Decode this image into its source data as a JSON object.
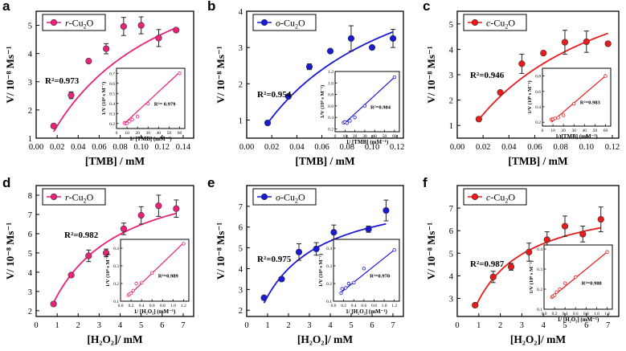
{
  "figure": {
    "description_panels": [
      "a",
      "b",
      "c",
      "d",
      "e",
      "f"
    ]
  },
  "chart_data": [
    {
      "type": "scatter",
      "panel_letter": "a",
      "color": "#e8227a",
      "legend": {
        "prefix": "r",
        "label": "-Cu",
        "sub": "2",
        "suffix": "O"
      },
      "xlabel": "[TMB] / mM",
      "ylabel": "V/ 10⁻⁸ Ms⁻¹",
      "xlim": [
        0.0,
        0.15
      ],
      "ylim": [
        1,
        5.5
      ],
      "xticks": [
        "0.00",
        "0.02",
        "0.04",
        "0.06",
        "0.08",
        "0.10",
        "0.12",
        "0.14"
      ],
      "xtick_values": [
        0.0,
        0.02,
        0.04,
        0.06,
        0.08,
        0.1,
        0.12,
        0.14
      ],
      "yticks": [
        "1",
        "2",
        "3",
        "4",
        "5"
      ],
      "ytick_values": [
        1,
        2,
        3,
        4,
        5
      ],
      "points": [
        {
          "x": 0.0167,
          "y": 1.43,
          "err": 0.05
        },
        {
          "x": 0.0333,
          "y": 2.52,
          "err": 0.12
        },
        {
          "x": 0.05,
          "y": 3.73,
          "err": 0.04
        },
        {
          "x": 0.0667,
          "y": 4.17,
          "err": 0.18
        },
        {
          "x": 0.0833,
          "y": 4.96,
          "err": 0.32
        },
        {
          "x": 0.1,
          "y": 5.0,
          "err": 0.3
        },
        {
          "x": 0.1167,
          "y": 4.55,
          "err": 0.3
        },
        {
          "x": 0.1333,
          "y": 4.83,
          "err": 0.05
        }
      ],
      "fit": {
        "vmax": 8.6,
        "km": 0.1
      },
      "fit_range": [
        0.0167,
        0.1333
      ],
      "r2_label": "R²=0.973",
      "inset": {
        "xlabel": "1/ [TMB] (mM⁻¹)",
        "ylabel": "1/V (10⁸ s M⁻¹)",
        "xlim": [
          0,
          65
        ],
        "ylim": [
          0.15,
          0.75
        ],
        "xticks": [
          "0",
          "10",
          "20",
          "30",
          "40",
          "50",
          "60"
        ],
        "xtick_values": [
          0,
          10,
          20,
          30,
          40,
          50,
          60
        ],
        "yticks": [
          "0.2",
          "0.3",
          "0.4",
          "0.5",
          "0.6",
          "0.7"
        ],
        "ytick_values": [
          0.2,
          0.3,
          0.4,
          0.5,
          0.6,
          0.7
        ],
        "points": [
          {
            "x": 7.5,
            "y": 0.207
          },
          {
            "x": 8.5,
            "y": 0.2
          },
          {
            "x": 10,
            "y": 0.201
          },
          {
            "x": 12,
            "y": 0.22
          },
          {
            "x": 15,
            "y": 0.24
          },
          {
            "x": 20,
            "y": 0.268
          },
          {
            "x": 30,
            "y": 0.397
          },
          {
            "x": 60,
            "y": 0.7
          }
        ],
        "line": [
          [
            7.5,
            0.2
          ],
          [
            60,
            0.71
          ]
        ],
        "r2_label": "R²= 0.979"
      }
    },
    {
      "type": "scatter",
      "panel_letter": "b",
      "color": "#1a1ad6",
      "legend": {
        "prefix": "o",
        "label": "-Cu",
        "sub": "2",
        "suffix": "O"
      },
      "xlabel": "[TMB] / mM",
      "ylabel": "V/ 10⁻⁸ Ms⁻¹",
      "xlim": [
        0.0,
        0.125
      ],
      "ylim": [
        0.5,
        4.0
      ],
      "xticks": [
        "0.00",
        "0.02",
        "0.04",
        "0.06",
        "0.08",
        "0.10",
        "0.12"
      ],
      "xtick_values": [
        0.0,
        0.02,
        0.04,
        0.06,
        0.08,
        0.1,
        0.12
      ],
      "yticks": [
        "1",
        "2",
        "3",
        "4"
      ],
      "ytick_values": [
        1,
        2,
        3,
        4
      ],
      "points": [
        {
          "x": 0.0167,
          "y": 0.92,
          "err": 0.03
        },
        {
          "x": 0.0333,
          "y": 1.65,
          "err": 0.04
        },
        {
          "x": 0.05,
          "y": 2.47,
          "err": 0.08
        },
        {
          "x": 0.0667,
          "y": 2.9,
          "err": 0.03
        },
        {
          "x": 0.0833,
          "y": 3.25,
          "err": 0.35
        },
        {
          "x": 0.1,
          "y": 3.0,
          "err": 0.04
        },
        {
          "x": 0.1167,
          "y": 3.25,
          "err": 0.25
        }
      ],
      "fit": {
        "vmax": 6.37,
        "km": 0.1
      },
      "fit_range": [
        0.0167,
        0.1167
      ],
      "r2_label": "R²=0.954",
      "inset": {
        "xlabel": "1/ [TMB] (mM⁻¹)",
        "ylabel": "1/V (10⁸ s M⁻¹)",
        "xlim": [
          0,
          65
        ],
        "ylim": [
          0.15,
          1.2
        ],
        "xticks": [
          "0",
          "10",
          "20",
          "30",
          "40",
          "50",
          "60"
        ],
        "xtick_values": [
          0,
          10,
          20,
          30,
          40,
          50,
          60
        ],
        "yticks": [
          "0.2",
          "0.4",
          "0.6",
          "0.8",
          "1.0",
          "1.2"
        ],
        "ytick_values": [
          0.2,
          0.4,
          0.6,
          0.8,
          1.0,
          1.2
        ],
        "points": [
          {
            "x": 8.5,
            "y": 0.31
          },
          {
            "x": 10,
            "y": 0.32
          },
          {
            "x": 12,
            "y": 0.3
          },
          {
            "x": 15,
            "y": 0.34
          },
          {
            "x": 20,
            "y": 0.4
          },
          {
            "x": 30,
            "y": 0.6
          },
          {
            "x": 60,
            "y": 1.1
          }
        ],
        "line": [
          [
            8.5,
            0.28
          ],
          [
            60,
            1.1
          ]
        ],
        "r2_label": "R²=0.984"
      }
    },
    {
      "type": "scatter",
      "panel_letter": "c",
      "color": "#e81c1c",
      "legend": {
        "prefix": "c",
        "label": "-Cu",
        "sub": "2",
        "suffix": "O"
      },
      "xlabel": "[TMB] / mM",
      "ylabel": "V/ 10⁻⁸ Ms⁻¹",
      "xlim": [
        0.0,
        0.125
      ],
      "ylim": [
        0.5,
        5.5
      ],
      "xticks": [
        "0.00",
        "0.02",
        "0.04",
        "0.06",
        "0.08",
        "0.10",
        "0.12"
      ],
      "xtick_values": [
        0.0,
        0.02,
        0.04,
        0.06,
        0.08,
        0.1,
        0.12
      ],
      "yticks": [
        "1",
        "2",
        "3",
        "4",
        "5"
      ],
      "ytick_values": [
        1,
        2,
        3,
        4,
        5
      ],
      "points": [
        {
          "x": 0.0167,
          "y": 1.25,
          "err": 0.04
        },
        {
          "x": 0.0333,
          "y": 2.3,
          "err": 0.04
        },
        {
          "x": 0.05,
          "y": 3.43,
          "err": 0.38
        },
        {
          "x": 0.0667,
          "y": 3.85,
          "err": 0.05
        },
        {
          "x": 0.0833,
          "y": 4.28,
          "err": 0.47
        },
        {
          "x": 0.1,
          "y": 4.3,
          "err": 0.42
        },
        {
          "x": 0.1167,
          "y": 4.22,
          "err": 0.05
        }
      ],
      "fit": {
        "vmax": 8.6,
        "km": 0.1
      },
      "fit_range": [
        0.0167,
        0.1167
      ],
      "r2_label": "R²=0.946",
      "inset": {
        "xlabel": "1/ [TMB] (mM⁻¹)",
        "ylabel": "1/V (10⁸ s M⁻¹)",
        "xlim": [
          0,
          65
        ],
        "ylim": [
          0.15,
          0.9
        ],
        "xticks": [
          "0",
          "10",
          "20",
          "30",
          "40",
          "50",
          "60"
        ],
        "xtick_values": [
          0,
          10,
          20,
          30,
          40,
          50,
          60
        ],
        "yticks": [
          "0.2",
          "0.4",
          "0.6",
          "0.8"
        ],
        "ytick_values": [
          0.2,
          0.4,
          0.6,
          0.8
        ],
        "points": [
          {
            "x": 8.5,
            "y": 0.235
          },
          {
            "x": 10,
            "y": 0.24
          },
          {
            "x": 12,
            "y": 0.25
          },
          {
            "x": 15,
            "y": 0.26
          },
          {
            "x": 20,
            "y": 0.29
          },
          {
            "x": 30,
            "y": 0.44
          },
          {
            "x": 60,
            "y": 0.8
          }
        ],
        "line": [
          [
            8.5,
            0.2
          ],
          [
            60,
            0.8
          ]
        ],
        "r2_label": "R²=0.983"
      }
    },
    {
      "type": "scatter",
      "panel_letter": "d",
      "color": "#e8227a",
      "legend": {
        "prefix": "r",
        "label": "-Cu",
        "sub": "2",
        "suffix": "O"
      },
      "xlabel": "[H₂O₂]/ mM",
      "ylabel": "V/ 10⁻⁸ Ms⁻¹",
      "xlim": [
        0,
        7.5
      ],
      "ylim": [
        1.7,
        8.5
      ],
      "xticks": [
        "0",
        "1",
        "2",
        "3",
        "4",
        "5",
        "6",
        "7"
      ],
      "xtick_values": [
        0,
        1,
        2,
        3,
        4,
        5,
        6,
        7
      ],
      "yticks": [
        "2",
        "3",
        "4",
        "5",
        "6",
        "7",
        "8"
      ],
      "ytick_values": [
        2,
        3,
        4,
        5,
        6,
        7,
        8
      ],
      "points": [
        {
          "x": 0.83,
          "y": 2.35,
          "err": 0.05
        },
        {
          "x": 1.67,
          "y": 3.85,
          "err": 0.08
        },
        {
          "x": 2.5,
          "y": 4.85,
          "err": 0.3
        },
        {
          "x": 3.33,
          "y": 5.0,
          "err": 0.2
        },
        {
          "x": 4.17,
          "y": 6.25,
          "err": 0.3
        },
        {
          "x": 5.0,
          "y": 6.95,
          "err": 0.45
        },
        {
          "x": 5.83,
          "y": 7.45,
          "err": 0.55
        },
        {
          "x": 6.67,
          "y": 7.3,
          "err": 0.45
        }
      ],
      "fit": {
        "vmax": 9.7,
        "km": 2.5
      },
      "fit_range": [
        0.83,
        6.67
      ],
      "r2_label": "R²=0.982",
      "inset": {
        "xlabel": "1/ [H₂O₂] (mM⁻¹)",
        "ylabel": "1/V (10⁸ s M⁻¹)",
        "xlim": [
          0,
          1.3
        ],
        "ylim": [
          0.1,
          0.45
        ],
        "xticks": [
          "0.0",
          "0.2",
          "0.4",
          "0.6",
          "0.8",
          "1.0",
          "1.2"
        ],
        "xtick_values": [
          0,
          0.2,
          0.4,
          0.6,
          0.8,
          1.0,
          1.2
        ],
        "yticks": [
          "0.1",
          "0.2",
          "0.3",
          "0.4"
        ],
        "ytick_values": [
          0.1,
          0.2,
          0.3,
          0.4
        ],
        "points": [
          {
            "x": 0.15,
            "y": 0.135
          },
          {
            "x": 0.17,
            "y": 0.14
          },
          {
            "x": 0.2,
            "y": 0.145
          },
          {
            "x": 0.24,
            "y": 0.16
          },
          {
            "x": 0.3,
            "y": 0.2
          },
          {
            "x": 0.4,
            "y": 0.205
          },
          {
            "x": 0.6,
            "y": 0.26
          },
          {
            "x": 1.2,
            "y": 0.425
          }
        ],
        "line": [
          [
            0.15,
            0.13
          ],
          [
            1.2,
            0.43
          ]
        ],
        "r2_label": "R²=0.989"
      }
    },
    {
      "type": "scatter",
      "panel_letter": "e",
      "color": "#1a1ad6",
      "legend": {
        "prefix": "o",
        "label": "-Cu",
        "sub": "2",
        "suffix": "O"
      },
      "xlabel": "[H₂O₂]/ mM",
      "ylabel": "V/ 10⁻⁸ Ms⁻¹",
      "xlim": [
        0,
        7.5
      ],
      "ylim": [
        1.7,
        8.0
      ],
      "xticks": [
        "0",
        "1",
        "2",
        "3",
        "4",
        "5",
        "6",
        "7"
      ],
      "xtick_values": [
        0,
        1,
        2,
        3,
        4,
        5,
        6,
        7
      ],
      "yticks": [
        "2",
        "3",
        "4",
        "5",
        "6",
        "7"
      ],
      "ytick_values": [
        2,
        3,
        4,
        5,
        6,
        7
      ],
      "points": [
        {
          "x": 0.83,
          "y": 2.6,
          "err": 0.05
        },
        {
          "x": 1.67,
          "y": 3.5,
          "err": 0.08
        },
        {
          "x": 2.5,
          "y": 4.8,
          "err": 0.4
        },
        {
          "x": 3.33,
          "y": 4.95,
          "err": 0.3
        },
        {
          "x": 4.17,
          "y": 5.75,
          "err": 0.35
        },
        {
          "x": 5.83,
          "y": 5.9,
          "err": 0.15
        },
        {
          "x": 6.67,
          "y": 6.8,
          "err": 0.5
        }
      ],
      "fit": {
        "vmax": 8.0,
        "km": 2.0
      },
      "fit_range": [
        0.83,
        6.67
      ],
      "r2_label": "R²=0.975",
      "inset": {
        "xlabel": "1/ [H₂O₂] (mM⁻¹)",
        "ylabel": "1/V (10⁸ s M⁻¹)",
        "xlim": [
          0,
          1.3
        ],
        "ylim": [
          0.1,
          0.45
        ],
        "xticks": [
          "0.0",
          "0.2",
          "0.4",
          "0.6",
          "0.8",
          "1.0",
          "1.2"
        ],
        "xtick_values": [
          0,
          0.2,
          0.4,
          0.6,
          0.8,
          1.0,
          1.2
        ],
        "yticks": [
          "0.1",
          "0.2",
          "0.3",
          "0.4"
        ],
        "ytick_values": [
          0.1,
          0.2,
          0.3,
          0.4
        ],
        "points": [
          {
            "x": 0.15,
            "y": 0.145
          },
          {
            "x": 0.17,
            "y": 0.17
          },
          {
            "x": 0.24,
            "y": 0.175
          },
          {
            "x": 0.3,
            "y": 0.2
          },
          {
            "x": 0.4,
            "y": 0.205
          },
          {
            "x": 0.6,
            "y": 0.285
          },
          {
            "x": 1.2,
            "y": 0.39
          }
        ],
        "line": [
          [
            0.15,
            0.15
          ],
          [
            1.2,
            0.39
          ]
        ],
        "r2_label": "R²=0.970"
      }
    },
    {
      "type": "scatter",
      "panel_letter": "f",
      "color": "#e81c1c",
      "legend": {
        "prefix": "c",
        "label": "-Cu",
        "sub": "2",
        "suffix": "O"
      },
      "xlabel": "[H₂O₂]/ mM",
      "ylabel": "V/ 10⁻⁸ Ms⁻¹",
      "xlim": [
        0,
        7.5
      ],
      "ylim": [
        2.2,
        8.0
      ],
      "xticks": [
        "0",
        "1",
        "2",
        "3",
        "4",
        "5",
        "6",
        "7"
      ],
      "xtick_values": [
        0,
        1,
        2,
        3,
        4,
        5,
        6,
        7
      ],
      "yticks": [
        "3",
        "4",
        "5",
        "6",
        "7"
      ],
      "ytick_values": [
        3,
        4,
        5,
        6,
        7
      ],
      "points": [
        {
          "x": 0.83,
          "y": 2.7,
          "err": 0.05
        },
        {
          "x": 1.67,
          "y": 3.95,
          "err": 0.25
        },
        {
          "x": 2.5,
          "y": 4.4,
          "err": 0.15
        },
        {
          "x": 3.33,
          "y": 5.05,
          "err": 0.4
        },
        {
          "x": 4.17,
          "y": 5.6,
          "err": 0.35
        },
        {
          "x": 5.0,
          "y": 6.2,
          "err": 0.45
        },
        {
          "x": 5.83,
          "y": 5.85,
          "err": 0.35
        },
        {
          "x": 6.67,
          "y": 6.5,
          "err": 0.55
        }
      ],
      "fit": {
        "vmax": 7.6,
        "km": 1.6
      },
      "fit_range": [
        0.83,
        6.67
      ],
      "r2_label": "R²=0.987",
      "inset": {
        "xlabel": "1/ [H₂O₂] (mM⁻¹)",
        "ylabel": "1/V (10⁸ s M⁻¹)",
        "xlim": [
          0,
          1.3
        ],
        "ylim": [
          0.1,
          0.42
        ],
        "xticks": [
          "0.0",
          "0.2",
          "0.4",
          "0.6",
          "0.8",
          "1.0",
          "1.2"
        ],
        "xtick_values": [
          0,
          0.2,
          0.4,
          0.6,
          0.8,
          1.0,
          1.2
        ],
        "yticks": [
          "0.1",
          "0.2",
          "0.3",
          "0.4"
        ],
        "ytick_values": [
          0.1,
          0.2,
          0.3,
          0.4
        ],
        "points": [
          {
            "x": 0.15,
            "y": 0.16
          },
          {
            "x": 0.17,
            "y": 0.165
          },
          {
            "x": 0.2,
            "y": 0.17
          },
          {
            "x": 0.24,
            "y": 0.185
          },
          {
            "x": 0.3,
            "y": 0.2
          },
          {
            "x": 0.4,
            "y": 0.23
          },
          {
            "x": 0.6,
            "y": 0.26
          },
          {
            "x": 1.2,
            "y": 0.385
          }
        ],
        "line": [
          [
            0.15,
            0.16
          ],
          [
            1.2,
            0.385
          ]
        ],
        "r2_label": "R²=0.988"
      }
    }
  ]
}
